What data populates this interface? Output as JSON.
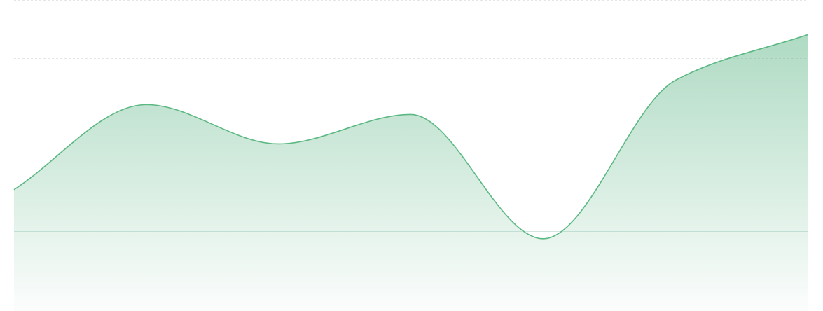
{
  "chart_data": {
    "type": "area",
    "title": "",
    "xlabel": "",
    "ylabel": "",
    "grid": true,
    "legend": "none",
    "x": [
      0,
      1,
      2,
      3,
      4,
      5,
      6
    ],
    "ylim": [
      -1.15,
      4
    ],
    "gridlines": [
      0,
      1,
      2,
      3,
      4
    ],
    "series": [
      {
        "values": [
          0.72,
          2.19,
          1.51,
          2.02,
          -0.13,
          2.61,
          3.4
        ]
      }
    ],
    "colors": {
      "line": "#5cb883",
      "fill": "#4dae7a",
      "grid": "#e6e6e6",
      "baseline": "#d3e7e2"
    }
  }
}
